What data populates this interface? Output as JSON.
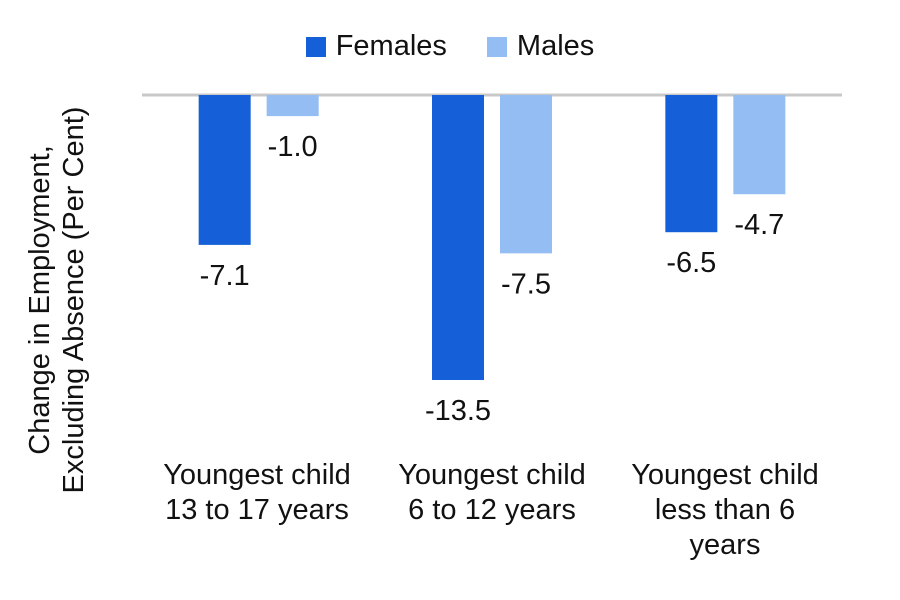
{
  "chart_data": {
    "type": "bar",
    "title": "",
    "ylabel": "Change in Employment,\nExcluding Absence (Per Cent)",
    "categories": [
      "Youngest child\n13 to 17 years",
      "Youngest child\n6 to 12 years",
      "Youngest child\nless than 6\nyears"
    ],
    "series": [
      {
        "name": "Females",
        "color": "#1560d8",
        "values": [
          -7.1,
          -13.5,
          -6.5
        ],
        "labels": [
          "-7.1",
          "-13.5",
          "-6.5"
        ]
      },
      {
        "name": "Males",
        "color": "#94bdf4",
        "values": [
          -1.0,
          -7.5,
          -4.7
        ],
        "labels": [
          "-1.0",
          "-7.5",
          "-4.7"
        ]
      }
    ],
    "ylim": [
      -13.5,
      0
    ],
    "legend_position": "top",
    "grid": false
  }
}
